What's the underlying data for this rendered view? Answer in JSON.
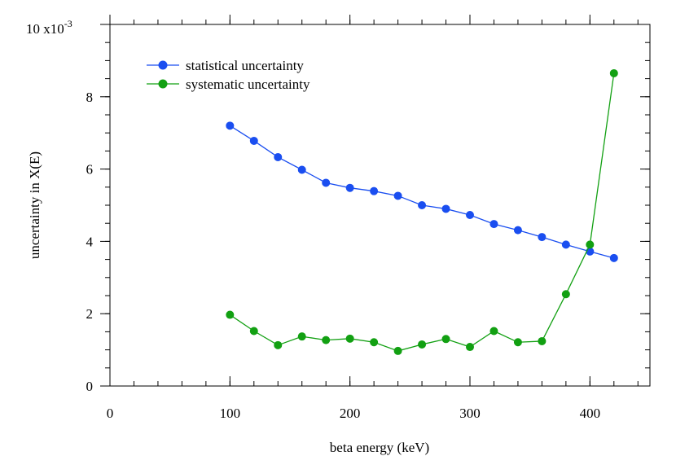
{
  "chart_data": {
    "type": "line",
    "xlabel": "beta energy (keV)",
    "ylabel": "uncertainty in X(E)",
    "xlim": [
      0,
      450
    ],
    "ylim": [
      0,
      10
    ],
    "y_scale_label": {
      "base": "10 x10",
      "exponent": "-3"
    },
    "x_ticks": [
      {
        "value": 0,
        "label": "0"
      },
      {
        "value": 100,
        "label": "100"
      },
      {
        "value": 200,
        "label": "200"
      },
      {
        "value": 300,
        "label": "300"
      },
      {
        "value": 400,
        "label": "400"
      }
    ],
    "y_ticks": [
      {
        "value": 0,
        "label": "0"
      },
      {
        "value": 2,
        "label": "2"
      },
      {
        "value": 4,
        "label": "4"
      },
      {
        "value": 6,
        "label": "6"
      },
      {
        "value": 8,
        "label": "8"
      }
    ],
    "x_minor_step": 20,
    "y_minor_step": 0.5,
    "x": [
      100,
      120,
      140,
      160,
      180,
      200,
      220,
      240,
      260,
      280,
      300,
      320,
      340,
      360,
      380,
      400,
      420
    ],
    "series": [
      {
        "name": "statistical uncertainty",
        "color": "#1a4ef0",
        "values": [
          7.2,
          6.78,
          6.33,
          5.98,
          5.62,
          5.48,
          5.39,
          5.26,
          5.0,
          4.9,
          4.73,
          4.48,
          4.31,
          4.12,
          3.91,
          3.72,
          3.54
        ]
      },
      {
        "name": "systematic uncertainty",
        "color": "#12a012",
        "values": [
          1.97,
          1.52,
          1.13,
          1.37,
          1.27,
          1.31,
          1.21,
          0.97,
          1.15,
          1.3,
          1.08,
          1.52,
          1.21,
          1.24,
          2.54,
          3.91,
          8.65
        ]
      }
    ],
    "legend": "top-left",
    "grid": false
  }
}
